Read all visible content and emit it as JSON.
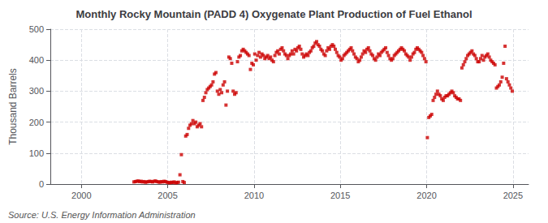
{
  "chart_data": {
    "type": "scatter",
    "title": "Monthly Rocky Mountain (PADD 4) Oxygenate Plant Production of Fuel Ethanol",
    "ylabel": "Thousand Barrels",
    "annotations": [
      "Source: U.S. Energy Information Administration"
    ],
    "color": "#cc0000",
    "marker": "square",
    "grid": true,
    "xlim": [
      1998.2,
      2025.9
    ],
    "xticks": [
      2000,
      2005,
      2010,
      2015,
      2020,
      2025
    ],
    "ylim": [
      0,
      500
    ],
    "yticks": [
      0,
      100,
      200,
      300,
      400,
      500
    ],
    "x": [
      2003.0416666666667,
      2003.125,
      2003.2083333333333,
      2003.2916666666667,
      2003.375,
      2003.4583333333333,
      2003.5416666666667,
      2003.625,
      2003.7083333333333,
      2003.7916666666667,
      2003.875,
      2003.9583333333333,
      2004.0416666666667,
      2004.125,
      2004.2083333333333,
      2004.2916666666667,
      2004.375,
      2004.4583333333333,
      2004.5416666666667,
      2004.625,
      2004.7083333333333,
      2004.7916666666667,
      2004.875,
      2004.9583333333333,
      2005.0416666666667,
      2005.125,
      2005.2083333333333,
      2005.2916666666667,
      2005.375,
      2005.4583333333333,
      2005.5416666666667,
      2005.625,
      2005.7083333333333,
      2005.7916666666667,
      2005.875,
      2005.9583333333333,
      2006.0416666666667,
      2006.125,
      2006.2083333333333,
      2006.2916666666667,
      2006.375,
      2006.4583333333333,
      2006.5416666666667,
      2006.625,
      2006.7083333333333,
      2006.7916666666667,
      2006.875,
      2006.9583333333333,
      2007.0416666666667,
      2007.125,
      2007.2083333333333,
      2007.2916666666667,
      2007.375,
      2007.4583333333333,
      2007.5416666666667,
      2007.625,
      2007.7083333333333,
      2007.7916666666667,
      2007.875,
      2007.9583333333333,
      2008.0416666666667,
      2008.125,
      2008.2083333333333,
      2008.2916666666667,
      2008.375,
      2008.4583333333333,
      2008.5416666666667,
      2008.625,
      2008.7083333333333,
      2008.7916666666667,
      2008.875,
      2008.9583333333333,
      2009.0416666666667,
      2009.125,
      2009.2083333333333,
      2009.2916666666667,
      2009.375,
      2009.4583333333333,
      2009.5416666666667,
      2009.625,
      2009.7083333333333,
      2009.7916666666667,
      2009.875,
      2009.9583333333333,
      2010.0416666666667,
      2010.125,
      2010.2083333333333,
      2010.2916666666667,
      2010.375,
      2010.4583333333333,
      2010.5416666666667,
      2010.625,
      2010.7083333333333,
      2010.7916666666667,
      2010.875,
      2010.9583333333333,
      2011.0416666666667,
      2011.125,
      2011.2083333333333,
      2011.2916666666667,
      2011.375,
      2011.4583333333333,
      2011.5416666666667,
      2011.625,
      2011.7083333333333,
      2011.7916666666667,
      2011.875,
      2011.9583333333333,
      2012.0416666666667,
      2012.125,
      2012.2083333333333,
      2012.2916666666667,
      2012.375,
      2012.4583333333333,
      2012.5416666666667,
      2012.625,
      2012.7083333333333,
      2012.7916666666667,
      2012.875,
      2012.9583333333333,
      2013.0416666666667,
      2013.125,
      2013.2083333333333,
      2013.2916666666667,
      2013.375,
      2013.4583333333333,
      2013.5416666666667,
      2013.625,
      2013.7083333333333,
      2013.7916666666667,
      2013.875,
      2013.9583333333333,
      2014.0416666666667,
      2014.125,
      2014.2083333333333,
      2014.2916666666667,
      2014.375,
      2014.4583333333333,
      2014.5416666666667,
      2014.625,
      2014.7083333333333,
      2014.7916666666667,
      2014.875,
      2014.9583333333333,
      2015.0416666666667,
      2015.125,
      2015.2083333333333,
      2015.2916666666667,
      2015.375,
      2015.4583333333333,
      2015.5416666666667,
      2015.625,
      2015.7083333333333,
      2015.7916666666667,
      2015.875,
      2015.9583333333333,
      2016.0416666666667,
      2016.125,
      2016.2083333333333,
      2016.2916666666667,
      2016.375,
      2016.4583333333333,
      2016.5416666666667,
      2016.625,
      2016.7083333333333,
      2016.7916666666667,
      2016.875,
      2016.9583333333333,
      2017.0416666666667,
      2017.125,
      2017.2083333333333,
      2017.2916666666667,
      2017.375,
      2017.4583333333333,
      2017.5416666666667,
      2017.625,
      2017.7083333333333,
      2017.7916666666667,
      2017.875,
      2017.9583333333333,
      2018.0416666666667,
      2018.125,
      2018.2083333333333,
      2018.2916666666667,
      2018.375,
      2018.4583333333333,
      2018.5416666666667,
      2018.625,
      2018.7083333333333,
      2018.7916666666667,
      2018.875,
      2018.9583333333333,
      2019.0416666666667,
      2019.125,
      2019.2083333333333,
      2019.2916666666667,
      2019.375,
      2019.4583333333333,
      2019.5416666666667,
      2019.625,
      2019.7083333333333,
      2019.7916666666667,
      2019.875,
      2019.9583333333333,
      2020.0416666666667,
      2020.125,
      2020.2083333333333,
      2020.2916666666667,
      2020.375,
      2020.4583333333333,
      2020.5416666666667,
      2020.625,
      2020.7083333333333,
      2020.7916666666667,
      2020.875,
      2020.9583333333333,
      2021.0416666666667,
      2021.125,
      2021.2083333333333,
      2021.2916666666667,
      2021.375,
      2021.4583333333333,
      2021.5416666666667,
      2021.625,
      2021.7083333333333,
      2021.7916666666667,
      2021.875,
      2021.9583333333333,
      2022.0416666666667,
      2022.125,
      2022.2083333333333,
      2022.2916666666667,
      2022.375,
      2022.4583333333333,
      2022.5416666666667,
      2022.625,
      2022.7083333333333,
      2022.7916666666667,
      2022.875,
      2022.9583333333333,
      2023.0416666666667,
      2023.125,
      2023.2083333333333,
      2023.2916666666667,
      2023.375,
      2023.4583333333333,
      2023.5416666666667,
      2023.625,
      2023.7083333333333,
      2023.7916666666667,
      2023.875,
      2023.9583333333333,
      2024.0416666666667,
      2024.125,
      2024.2083333333333,
      2024.2916666666667,
      2024.375,
      2024.4583333333333,
      2024.5416666666667,
      2024.625,
      2024.7083333333333,
      2024.7916666666667,
      2024.875,
      2024.9583333333333
    ],
    "values": [
      7,
      8,
      9,
      10,
      8,
      9,
      7,
      8,
      6,
      7,
      8,
      9,
      8,
      7,
      9,
      10,
      8,
      7,
      6,
      8,
      7,
      9,
      8,
      6,
      5,
      4,
      6,
      5,
      7,
      4,
      5,
      6,
      30,
      95,
      8,
      5,
      155,
      160,
      180,
      190,
      195,
      205,
      195,
      200,
      185,
      190,
      195,
      185,
      270,
      280,
      295,
      305,
      310,
      315,
      320,
      330,
      355,
      360,
      300,
      290,
      305,
      295,
      320,
      330,
      255,
      300,
      410,
      405,
      390,
      300,
      290,
      295,
      395,
      410,
      415,
      430,
      435,
      430,
      425,
      420,
      415,
      370,
      390,
      385,
      420,
      400,
      415,
      425,
      410,
      420,
      415,
      405,
      410,
      415,
      405,
      410,
      400,
      395,
      415,
      425,
      430,
      420,
      435,
      440,
      430,
      420,
      415,
      405,
      415,
      420,
      430,
      420,
      435,
      430,
      440,
      445,
      435,
      420,
      410,
      415,
      420,
      415,
      425,
      430,
      440,
      445,
      455,
      460,
      450,
      445,
      435,
      430,
      420,
      415,
      430,
      440,
      435,
      445,
      450,
      445,
      435,
      425,
      415,
      410,
      400,
      405,
      415,
      420,
      425,
      430,
      435,
      440,
      430,
      420,
      410,
      405,
      395,
      400,
      410,
      420,
      430,
      425,
      435,
      440,
      430,
      420,
      415,
      405,
      400,
      410,
      420,
      415,
      425,
      430,
      435,
      440,
      425,
      415,
      405,
      400,
      405,
      415,
      420,
      425,
      430,
      435,
      440,
      435,
      430,
      420,
      415,
      410,
      400,
      410,
      420,
      425,
      435,
      440,
      435,
      430,
      425,
      415,
      405,
      395,
      150,
      215,
      220,
      225,
      270,
      280,
      290,
      300,
      290,
      285,
      275,
      270,
      280,
      285,
      285,
      290,
      295,
      300,
      295,
      285,
      280,
      275,
      275,
      270,
      375,
      385,
      395,
      405,
      415,
      420,
      425,
      430,
      420,
      415,
      405,
      395,
      395,
      405,
      415,
      400,
      410,
      415,
      420,
      410,
      400,
      395,
      390,
      385,
      310,
      315,
      320,
      330,
      345,
      390,
      445,
      340,
      330,
      320,
      310,
      300
    ]
  }
}
